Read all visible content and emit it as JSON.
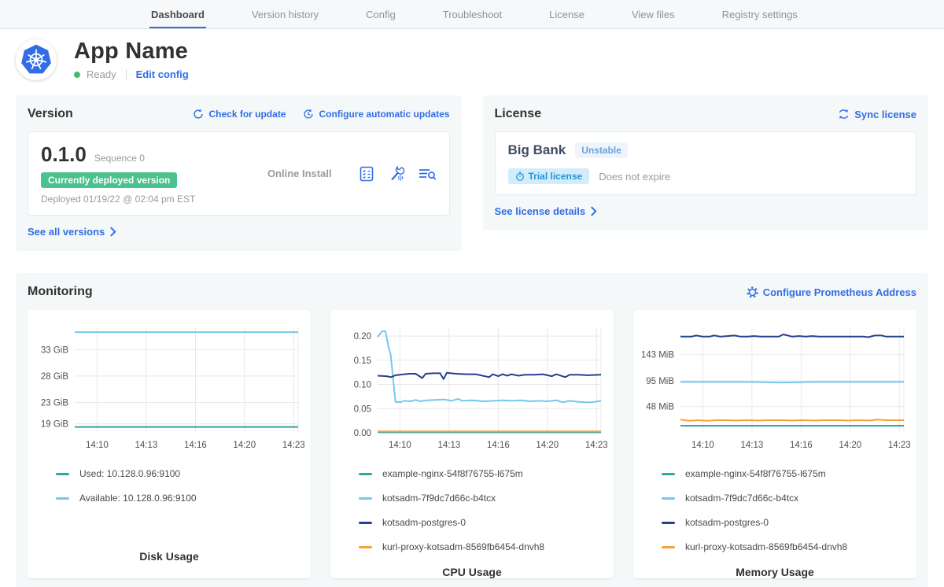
{
  "nav": {
    "tabs": [
      {
        "label": "Dashboard",
        "active": true
      },
      {
        "label": "Version history",
        "active": false
      },
      {
        "label": "Config",
        "active": false
      },
      {
        "label": "Troubleshoot",
        "active": false
      },
      {
        "label": "License",
        "active": false
      },
      {
        "label": "View files",
        "active": false
      },
      {
        "label": "Registry settings",
        "active": false
      }
    ]
  },
  "app": {
    "title": "App Name",
    "status": "Ready",
    "edit_config": "Edit config"
  },
  "version_card": {
    "title": "Version",
    "check_for_update": "Check for update",
    "configure_auto": "Configure automatic updates",
    "version": "0.1.0",
    "sequence": "Sequence 0",
    "deployed_badge": "Currently deployed version",
    "deployed_at": "Deployed 01/19/22 @ 02:04 pm EST",
    "install_type": "Online Install",
    "see_all": "See all versions"
  },
  "license_card": {
    "title": "License",
    "sync": "Sync license",
    "name": "Big Bank",
    "channel": "Unstable",
    "type_badge": "Trial license",
    "expiry": "Does not expire",
    "details": "See license details"
  },
  "monitoring": {
    "title": "Monitoring",
    "configure_prometheus": "Configure Prometheus Address"
  },
  "colors": {
    "accent": "#326de6",
    "deployed_badge_green": "#4ac28e",
    "status_dot_green": "#44bb66",
    "series_teal": "#2fa5a5",
    "series_lightblue": "#74c8ec",
    "series_navy": "#25418f",
    "series_orange": "#f7a13c"
  },
  "chart_data": [
    {
      "type": "line",
      "title": "Disk Usage",
      "ylabel": "",
      "xlabel": "",
      "ylim": [
        17.3,
        37.2
      ],
      "grid": true,
      "legend_position": "below",
      "yticks": [
        {
          "v": 33,
          "label": "33 GiB"
        },
        {
          "v": 28,
          "label": "28 GiB"
        },
        {
          "v": 23,
          "label": "23 GiB"
        },
        {
          "v": 19,
          "label": "19 GiB"
        }
      ],
      "xticks": [
        {
          "pos": 0.1,
          "label": "14:10"
        },
        {
          "pos": 0.32,
          "label": "14:13"
        },
        {
          "pos": 0.54,
          "label": "14:16"
        },
        {
          "pos": 0.76,
          "label": "14:20"
        },
        {
          "pos": 0.98,
          "label": "14:23"
        }
      ],
      "series": [
        {
          "name": "Used: 10.128.0.96:9100",
          "color": "#2fa5a5",
          "points": [
            [
              0,
              18.4
            ],
            [
              1,
              18.4
            ]
          ]
        },
        {
          "name": "Available: 10.128.0.96:9100",
          "color": "#74c8ec",
          "points": [
            [
              0,
              36.3
            ],
            [
              1,
              36.3
            ]
          ]
        }
      ]
    },
    {
      "type": "line",
      "title": "CPU Usage",
      "ylabel": "",
      "xlabel": "",
      "ylim": [
        0,
        0.218
      ],
      "grid": true,
      "legend_position": "below",
      "yticks": [
        {
          "v": 0.2,
          "label": "0.20"
        },
        {
          "v": 0.15,
          "label": "0.15"
        },
        {
          "v": 0.1,
          "label": "0.10"
        },
        {
          "v": 0.05,
          "label": "0.05"
        },
        {
          "v": 0.0,
          "label": "0.00"
        }
      ],
      "xticks": [
        {
          "pos": 0.1,
          "label": "14:10"
        },
        {
          "pos": 0.32,
          "label": "14:13"
        },
        {
          "pos": 0.54,
          "label": "14:16"
        },
        {
          "pos": 0.76,
          "label": "14:20"
        },
        {
          "pos": 0.98,
          "label": "14:23"
        }
      ],
      "series": [
        {
          "name": "example-nginx-54f8f76755-l675m",
          "color": "#2fa5a5",
          "points": [
            [
              0,
              0.001
            ],
            [
              1,
              0.001
            ]
          ]
        },
        {
          "name": "kotsadm-7f9dc7d66c-b4tcx",
          "color": "#74c8ec",
          "points": [
            [
              0,
              0.198
            ],
            [
              0.02,
              0.21
            ],
            [
              0.035,
              0.21
            ],
            [
              0.05,
              0.175
            ],
            [
              0.058,
              0.163
            ],
            [
              0.08,
              0.064
            ],
            [
              0.1,
              0.063
            ],
            [
              0.12,
              0.066
            ],
            [
              0.15,
              0.065
            ],
            [
              0.17,
              0.068
            ],
            [
              0.19,
              0.065
            ],
            [
              0.22,
              0.067
            ],
            [
              0.26,
              0.068
            ],
            [
              0.3,
              0.069
            ],
            [
              0.33,
              0.066
            ],
            [
              0.36,
              0.07
            ],
            [
              0.38,
              0.066
            ],
            [
              0.42,
              0.067
            ],
            [
              0.48,
              0.065
            ],
            [
              0.52,
              0.066
            ],
            [
              0.56,
              0.067
            ],
            [
              0.6,
              0.066
            ],
            [
              0.64,
              0.067
            ],
            [
              0.68,
              0.065
            ],
            [
              0.72,
              0.066
            ],
            [
              0.76,
              0.065
            ],
            [
              0.8,
              0.067
            ],
            [
              0.83,
              0.063
            ],
            [
              0.86,
              0.066
            ],
            [
              0.9,
              0.064
            ],
            [
              0.93,
              0.063
            ],
            [
              0.96,
              0.063
            ],
            [
              1,
              0.066
            ]
          ]
        },
        {
          "name": "kotsadm-postgres-0",
          "color": "#25418f",
          "points": [
            [
              0,
              0.118
            ],
            [
              0.04,
              0.117
            ],
            [
              0.06,
              0.115
            ],
            [
              0.08,
              0.119
            ],
            [
              0.12,
              0.121
            ],
            [
              0.14,
              0.122
            ],
            [
              0.17,
              0.122
            ],
            [
              0.2,
              0.113
            ],
            [
              0.215,
              0.122
            ],
            [
              0.25,
              0.123
            ],
            [
              0.28,
              0.123
            ],
            [
              0.295,
              0.111
            ],
            [
              0.31,
              0.124
            ],
            [
              0.35,
              0.122
            ],
            [
              0.4,
              0.121
            ],
            [
              0.44,
              0.121
            ],
            [
              0.47,
              0.118
            ],
            [
              0.5,
              0.115
            ],
            [
              0.515,
              0.121
            ],
            [
              0.54,
              0.117
            ],
            [
              0.56,
              0.121
            ],
            [
              0.58,
              0.118
            ],
            [
              0.6,
              0.121
            ],
            [
              0.63,
              0.118
            ],
            [
              0.66,
              0.12
            ],
            [
              0.7,
              0.12
            ],
            [
              0.74,
              0.121
            ],
            [
              0.78,
              0.117
            ],
            [
              0.8,
              0.121
            ],
            [
              0.84,
              0.115
            ],
            [
              0.86,
              0.12
            ],
            [
              0.9,
              0.12
            ],
            [
              0.94,
              0.119
            ],
            [
              1,
              0.12
            ]
          ]
        },
        {
          "name": "kurl-proxy-kotsadm-8569fb6454-dnvh8",
          "color": "#f7a13c",
          "points": [
            [
              0,
              0.003
            ],
            [
              1,
              0.003
            ]
          ]
        }
      ]
    },
    {
      "type": "line",
      "title": "Memory Usage",
      "ylabel": "",
      "xlabel": "",
      "ylim": [
        0,
        193
      ],
      "grid": true,
      "legend_position": "below",
      "yticks": [
        {
          "v": 143,
          "label": "143 MiB"
        },
        {
          "v": 95,
          "label": "95 MiB"
        },
        {
          "v": 48,
          "label": "48 MiB"
        }
      ],
      "xticks": [
        {
          "pos": 0.1,
          "label": "14:10"
        },
        {
          "pos": 0.32,
          "label": "14:13"
        },
        {
          "pos": 0.54,
          "label": "14:16"
        },
        {
          "pos": 0.76,
          "label": "14:20"
        },
        {
          "pos": 0.98,
          "label": "14:23"
        }
      ],
      "series": [
        {
          "name": "example-nginx-54f8f76755-l675m",
          "color": "#2fa5a5",
          "points": [
            [
              0,
              13
            ],
            [
              1,
              13
            ]
          ]
        },
        {
          "name": "kotsadm-7f9dc7d66c-b4tcx",
          "color": "#74c8ec",
          "points": [
            [
              0,
              93
            ],
            [
              0.3,
              93
            ],
            [
              0.45,
              92
            ],
            [
              0.6,
              93
            ],
            [
              1,
              93
            ]
          ]
        },
        {
          "name": "kotsadm-postgres-0",
          "color": "#25418f",
          "points": [
            [
              0,
              176
            ],
            [
              0.05,
              176
            ],
            [
              0.07,
              178
            ],
            [
              0.1,
              176
            ],
            [
              0.13,
              176
            ],
            [
              0.15,
              178
            ],
            [
              0.18,
              176
            ],
            [
              0.21,
              177
            ],
            [
              0.24,
              178
            ],
            [
              0.27,
              176
            ],
            [
              0.3,
              176
            ],
            [
              0.33,
              177
            ],
            [
              0.36,
              176
            ],
            [
              0.4,
              176
            ],
            [
              0.44,
              176
            ],
            [
              0.46,
              180
            ],
            [
              0.48,
              178
            ],
            [
              0.5,
              176
            ],
            [
              0.53,
              177
            ],
            [
              0.56,
              176
            ],
            [
              0.59,
              177
            ],
            [
              0.62,
              176
            ],
            [
              0.66,
              176
            ],
            [
              0.7,
              176
            ],
            [
              0.74,
              176
            ],
            [
              0.78,
              176
            ],
            [
              0.82,
              176
            ],
            [
              0.84,
              175
            ],
            [
              0.87,
              178
            ],
            [
              0.9,
              178
            ],
            [
              0.92,
              176
            ],
            [
              0.96,
              176
            ],
            [
              1,
              176
            ]
          ]
        },
        {
          "name": "kurl-proxy-kotsadm-8569fb6454-dnvh8",
          "color": "#f7a13c",
          "points": [
            [
              0,
              24
            ],
            [
              0.04,
              22
            ],
            [
              0.08,
              23
            ],
            [
              0.12,
              22
            ],
            [
              0.16,
              23
            ],
            [
              0.2,
              23
            ],
            [
              0.25,
              22.5
            ],
            [
              0.3,
              23
            ],
            [
              0.35,
              22.5
            ],
            [
              0.4,
              23
            ],
            [
              0.45,
              23
            ],
            [
              0.5,
              22.5
            ],
            [
              0.55,
              23
            ],
            [
              0.6,
              22.5
            ],
            [
              0.65,
              23
            ],
            [
              0.7,
              23
            ],
            [
              0.75,
              22.5
            ],
            [
              0.8,
              23
            ],
            [
              0.85,
              22.5
            ],
            [
              0.88,
              24
            ],
            [
              0.92,
              23
            ],
            [
              1,
              23
            ]
          ]
        }
      ]
    }
  ]
}
